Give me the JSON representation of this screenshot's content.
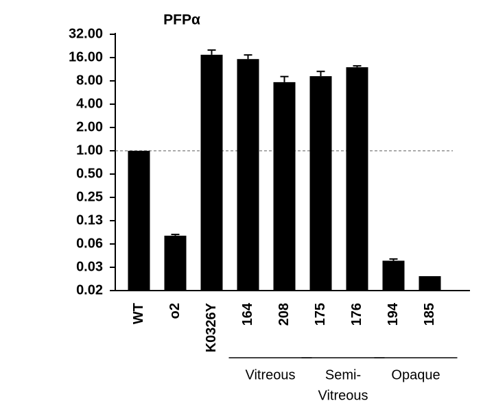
{
  "chart_data": {
    "type": "bar",
    "title": "PFPα",
    "categories": [
      "WT",
      "o2",
      "K0326Y",
      "164",
      "208",
      "175",
      "176",
      "194",
      "185"
    ],
    "values": [
      1.0,
      0.08,
      17.4,
      15.3,
      7.7,
      9.2,
      12,
      0.038,
      0.024
    ],
    "errors": [
      null,
      0.003,
      2.6,
      2,
      1.4,
      1.4,
      0.5,
      0.002,
      null
    ],
    "color": "#000000",
    "log_scale": 2,
    "ylim": [
      0.015625,
      32
    ],
    "yticks": [
      {
        "value": 32,
        "label": "32.00"
      },
      {
        "value": 16,
        "label": "16.00"
      },
      {
        "value": 8,
        "label": "8.00"
      },
      {
        "value": 4,
        "label": "4.00"
      },
      {
        "value": 2,
        "label": "2.00"
      },
      {
        "value": 1,
        "label": "1.00"
      },
      {
        "value": 0.5,
        "label": "0.50"
      },
      {
        "value": 0.25,
        "label": "0.25"
      },
      {
        "value": 0.125,
        "label": "0.13"
      },
      {
        "value": 0.0625,
        "label": "0.06"
      },
      {
        "value": 0.03125,
        "label": "0.03"
      },
      {
        "value": 0.015625,
        "label": "0.02"
      }
    ],
    "reference_line": 1,
    "groups": [
      {
        "lines": [
          "Vitreous"
        ],
        "members": [
          "164",
          "208"
        ]
      },
      {
        "lines": [
          "Semi-",
          "Vitreous"
        ],
        "members": [
          "175",
          "176"
        ]
      },
      {
        "lines": [
          "Opaque"
        ],
        "members": [
          "194",
          "185"
        ]
      }
    ]
  }
}
